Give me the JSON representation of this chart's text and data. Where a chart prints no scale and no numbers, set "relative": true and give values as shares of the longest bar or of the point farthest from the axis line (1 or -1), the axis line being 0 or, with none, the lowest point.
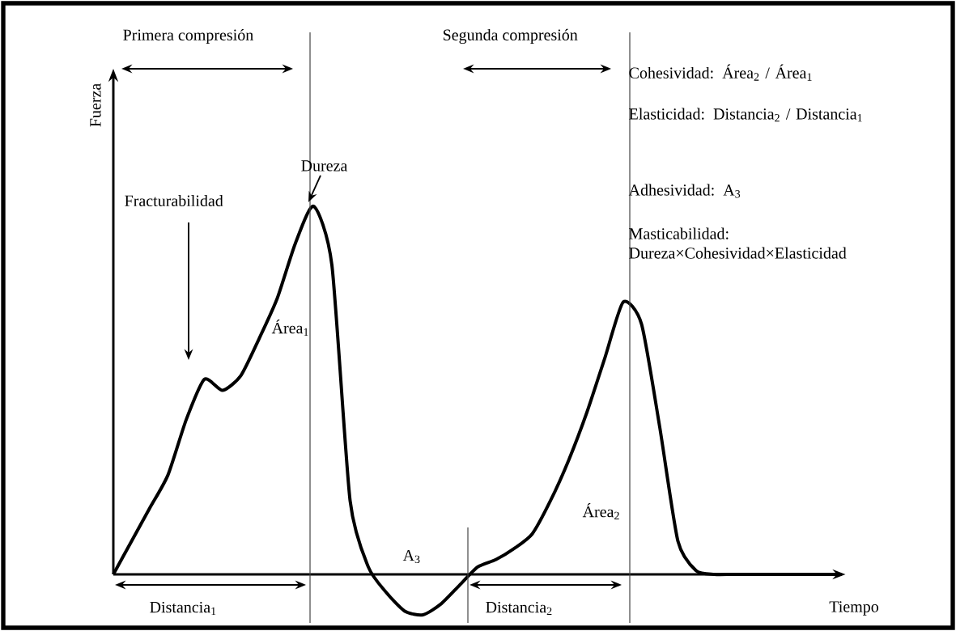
{
  "chart_data": {
    "type": "line",
    "relative": true,
    "xlabel": "Tiempo",
    "ylabel": "Fuerza",
    "color": "#000000",
    "categories": [
      null,
      null,
      null,
      null,
      null,
      null,
      null,
      null,
      null,
      null,
      null,
      null,
      null,
      null,
      null,
      null,
      null,
      null,
      null,
      null,
      null,
      null,
      null,
      null,
      null,
      null,
      null,
      null,
      null,
      null,
      null,
      null,
      null,
      null,
      null,
      null,
      null,
      null,
      null,
      null,
      null
    ],
    "values": [
      0,
      0.09,
      0.18,
      0.27,
      0.42,
      0.53,
      0.5,
      0.54,
      0.64,
      0.75,
      0.9,
      1.0,
      0.84,
      0.2,
      0.02,
      -0.05,
      -0.1,
      -0.11,
      -0.08,
      -0.03,
      0.02,
      0.04,
      0.07,
      0.11,
      0.2,
      0.31,
      0.44,
      0.59,
      0.74,
      0.68,
      0.4,
      0.09,
      0.01,
      0,
      0,
      0,
      0,
      0,
      0,
      0,
      0
    ],
    "annotations": [
      "Primera compresión",
      "Segunda compresión",
      "Fracturabilidad",
      "Dureza",
      "Área$_{1}$",
      "Área$_{2}$",
      "A$_{3}$",
      "Distancia$_{1}$",
      "Distancia$_{2}$",
      "Cohesividad: Área$_{2}$ / Área$_{1}$",
      "Elasticidad: Distancia$_{2}$ / Distancia$_{1}$",
      "Adhesividad: A$_{3}$",
      "Masticabilidad: Dureza×Cohesividad×Elasticidad"
    ]
  }
}
